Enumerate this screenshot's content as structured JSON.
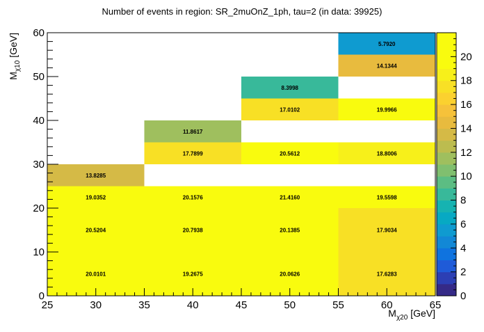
{
  "chart_data": {
    "type": "heatmap",
    "title": "Number of events in region: SR_2muOnZ_1ph, tau=2 (in data: 39925)",
    "xlabel_main": "M",
    "xlabel_sub": "χ20",
    "xlabel_unit": " [GeV]",
    "ylabel_main": "M",
    "ylabel_sub": "χ10",
    "ylabel_unit": " [GeV]",
    "xlim": [
      25,
      65
    ],
    "ylim": [
      0,
      60
    ],
    "zlim": [
      0,
      22
    ],
    "x_ticks": [
      25,
      30,
      35,
      40,
      45,
      50,
      55,
      60,
      65
    ],
    "y_ticks": [
      0,
      10,
      20,
      30,
      40,
      50,
      60
    ],
    "z_ticks": [
      0,
      2,
      4,
      6,
      8,
      10,
      12,
      14,
      16,
      18,
      20
    ],
    "cells": [
      {
        "x0": 25,
        "x1": 35,
        "y0": 0,
        "y1": 10,
        "value": 20.0101,
        "label": "20.0101"
      },
      {
        "x0": 35,
        "x1": 45,
        "y0": 0,
        "y1": 10,
        "value": 19.2675,
        "label": "19.2675"
      },
      {
        "x0": 45,
        "x1": 55,
        "y0": 0,
        "y1": 10,
        "value": 20.0626,
        "label": "20.0626"
      },
      {
        "x0": 55,
        "x1": 65,
        "y0": 0,
        "y1": 10,
        "value": 17.6283,
        "label": "17.6283"
      },
      {
        "x0": 25,
        "x1": 35,
        "y0": 10,
        "y1": 20,
        "value": 20.5204,
        "label": "20.5204"
      },
      {
        "x0": 35,
        "x1": 45,
        "y0": 10,
        "y1": 20,
        "value": 20.7938,
        "label": "20.7938"
      },
      {
        "x0": 45,
        "x1": 55,
        "y0": 10,
        "y1": 20,
        "value": 20.1385,
        "label": "20.1385"
      },
      {
        "x0": 55,
        "x1": 65,
        "y0": 10,
        "y1": 20,
        "value": 17.9034,
        "label": "17.9034"
      },
      {
        "x0": 25,
        "x1": 35,
        "y0": 20,
        "y1": 25,
        "value": 19.0352,
        "label": "19.0352"
      },
      {
        "x0": 35,
        "x1": 45,
        "y0": 20,
        "y1": 25,
        "value": 20.1576,
        "label": "20.1576"
      },
      {
        "x0": 45,
        "x1": 55,
        "y0": 20,
        "y1": 25,
        "value": 21.416,
        "label": "21.4160"
      },
      {
        "x0": 55,
        "x1": 65,
        "y0": 20,
        "y1": 25,
        "value": 19.5598,
        "label": "19.5598"
      },
      {
        "x0": 25,
        "x1": 35,
        "y0": 25,
        "y1": 30,
        "value": 13.8285,
        "label": "13.8285"
      },
      {
        "x0": 35,
        "x1": 45,
        "y0": 30,
        "y1": 35,
        "value": 17.7899,
        "label": "17.7899"
      },
      {
        "x0": 45,
        "x1": 55,
        "y0": 30,
        "y1": 35,
        "value": 20.5612,
        "label": "20.5612"
      },
      {
        "x0": 55,
        "x1": 65,
        "y0": 30,
        "y1": 35,
        "value": 18.8006,
        "label": "18.8006"
      },
      {
        "x0": 35,
        "x1": 45,
        "y0": 35,
        "y1": 40,
        "value": 11.8617,
        "label": "11.8617"
      },
      {
        "x0": 45,
        "x1": 55,
        "y0": 40,
        "y1": 45,
        "value": 17.0102,
        "label": "17.0102"
      },
      {
        "x0": 55,
        "x1": 65,
        "y0": 40,
        "y1": 45,
        "value": 19.9966,
        "label": "19.9966"
      },
      {
        "x0": 45,
        "x1": 55,
        "y0": 45,
        "y1": 50,
        "value": 8.3998,
        "label": "8.3998"
      },
      {
        "x0": 55,
        "x1": 65,
        "y0": 50,
        "y1": 55,
        "value": 14.1344,
        "label": "14.1344"
      },
      {
        "x0": 55,
        "x1": 65,
        "y0": 55,
        "y1": 60,
        "value": 5.792,
        "label": "5.7920"
      }
    ],
    "colormap": [
      "#352a87",
      "#2c3fb4",
      "#1f5bd8",
      "#0f73df",
      "#1288d6",
      "#0f9bd0",
      "#07a9c3",
      "#16b3b1",
      "#38b99a",
      "#5cbd83",
      "#80bf6f",
      "#9fbf5e",
      "#bcbc4f",
      "#d5ba46",
      "#e8bb3e",
      "#f6c23a",
      "#fbd12f",
      "#f8e025",
      "#f7f01a",
      "#f9fb0e",
      "#f9fb0e",
      "#f9fb0e"
    ],
    "grid": false,
    "colorbar": "right"
  }
}
